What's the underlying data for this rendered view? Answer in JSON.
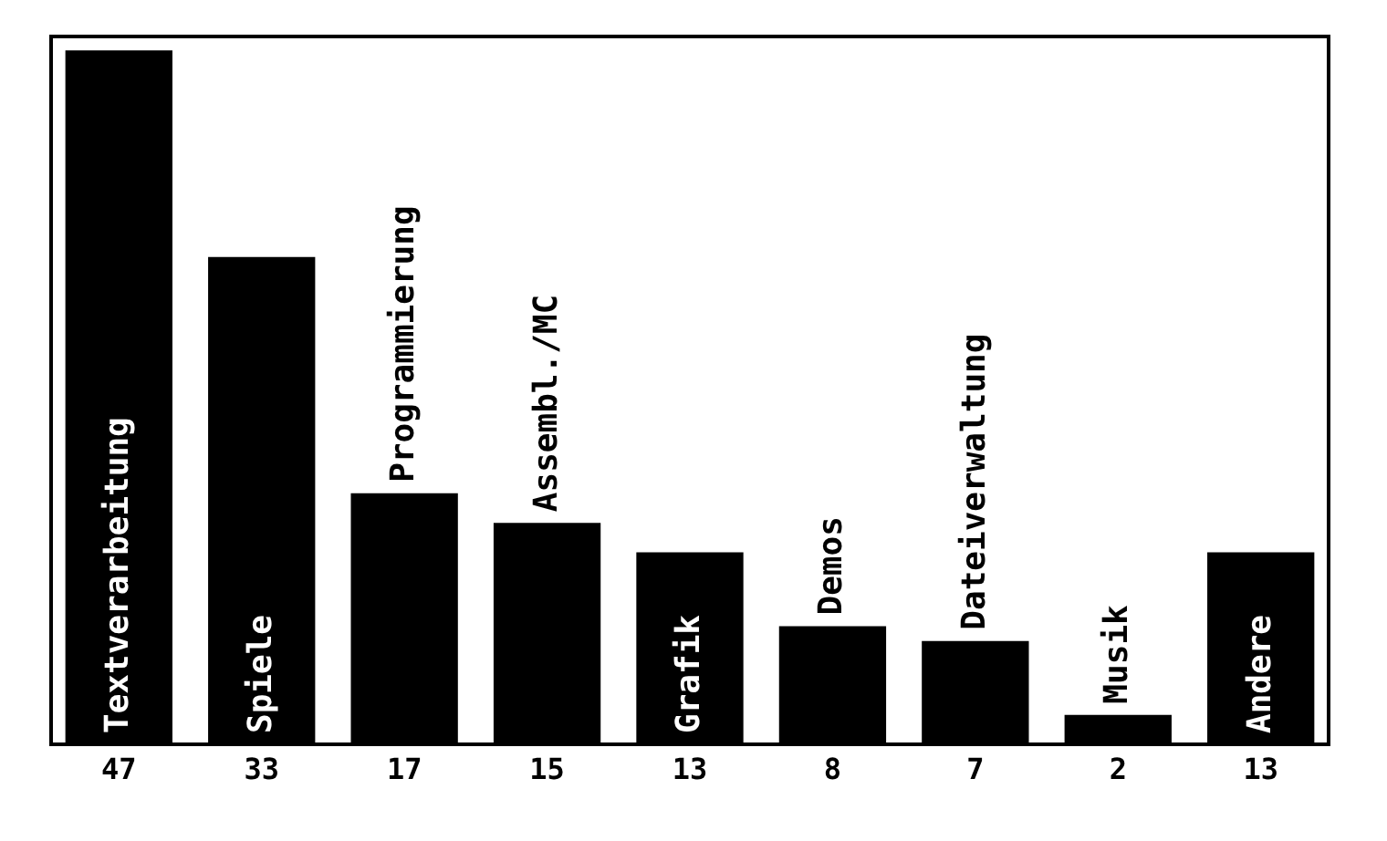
{
  "chart_data": {
    "type": "bar",
    "categories": [
      "Textverarbeitung",
      "Spiele",
      "Programmierung",
      "Assembl./MC",
      "Grafik",
      "Demos",
      "Dateiverwaltung",
      "Musik",
      "Andere"
    ],
    "values": [
      47,
      33,
      17,
      15,
      13,
      8,
      7,
      2,
      13
    ],
    "color": "#000000",
    "data_labels": true,
    "grid": false
  }
}
